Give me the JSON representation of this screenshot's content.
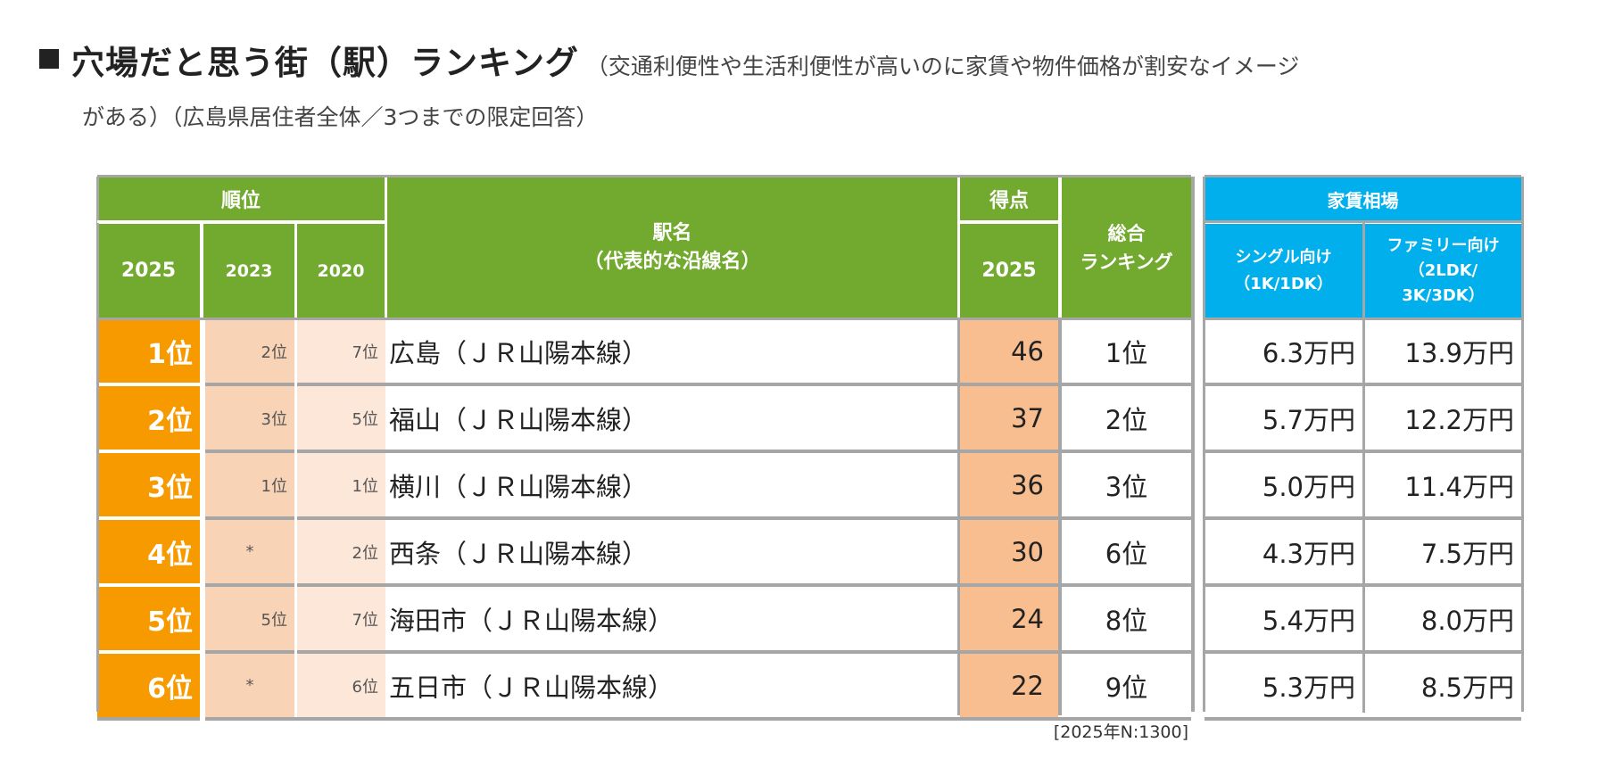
{
  "title": {
    "main": "穴場だと思う街（駅）ランキング",
    "sub": "（交通利便性や生活利便性が高いのに家賃や物件価格が割安なイメージ",
    "line2": "がある）（広島県居住者全体／3つまでの限定回答）"
  },
  "headers": {
    "rank": "順位",
    "rank_2025": "2025",
    "rank_2023": "2023",
    "rank_2020": "2020",
    "station": "駅名",
    "station_sub": "（代表的な沿線名）",
    "score": "得点",
    "score_2025": "2025",
    "overall": "総合",
    "overall2": "ランキング",
    "rent": "家賃相場",
    "single": "シングル向け",
    "single_sub": "（1K/1DK）",
    "family": "ファミリー向け",
    "family_sub": "（2LDK/",
    "family_sub2": "3K/3DK）"
  },
  "rows": [
    {
      "r2025": "1位",
      "r2023": "2位",
      "r2020": "7位",
      "station": "広島（ＪＲ山陽本線）",
      "score": "46",
      "overall": "1位",
      "single": "6.3万円",
      "family": "13.9万円"
    },
    {
      "r2025": "2位",
      "r2023": "3位",
      "r2020": "5位",
      "station": "福山（ＪＲ山陽本線）",
      "score": "37",
      "overall": "2位",
      "single": "5.7万円",
      "family": "12.2万円"
    },
    {
      "r2025": "3位",
      "r2023": "1位",
      "r2020": "1位",
      "station": "横川（ＪＲ山陽本線）",
      "score": "36",
      "overall": "3位",
      "single": "5.0万円",
      "family": "11.4万円"
    },
    {
      "r2025": "4位",
      "r2023": "*",
      "r2020": "2位",
      "station": "西条（ＪＲ山陽本線）",
      "score": "30",
      "overall": "6位",
      "single": "4.3万円",
      "family": "7.5万円"
    },
    {
      "r2025": "5位",
      "r2023": "5位",
      "r2020": "7位",
      "station": "海田市（ＪＲ山陽本線）",
      "score": "24",
      "overall": "8位",
      "single": "5.4万円",
      "family": "8.0万円"
    },
    {
      "r2025": "6位",
      "r2023": "*",
      "r2020": "6位",
      "station": "五日市（ＪＲ山陽本線）",
      "score": "22",
      "overall": "9位",
      "single": "5.3万円",
      "family": "8.5万円"
    }
  ],
  "footnote": "[2025年N:1300]",
  "colors": {
    "green": "#72a92f",
    "orange": "#f79a00",
    "peach": "#f9d3b6",
    "light_peach": "#fde7d9",
    "score": "#f8be90",
    "blue": "#00afec"
  }
}
